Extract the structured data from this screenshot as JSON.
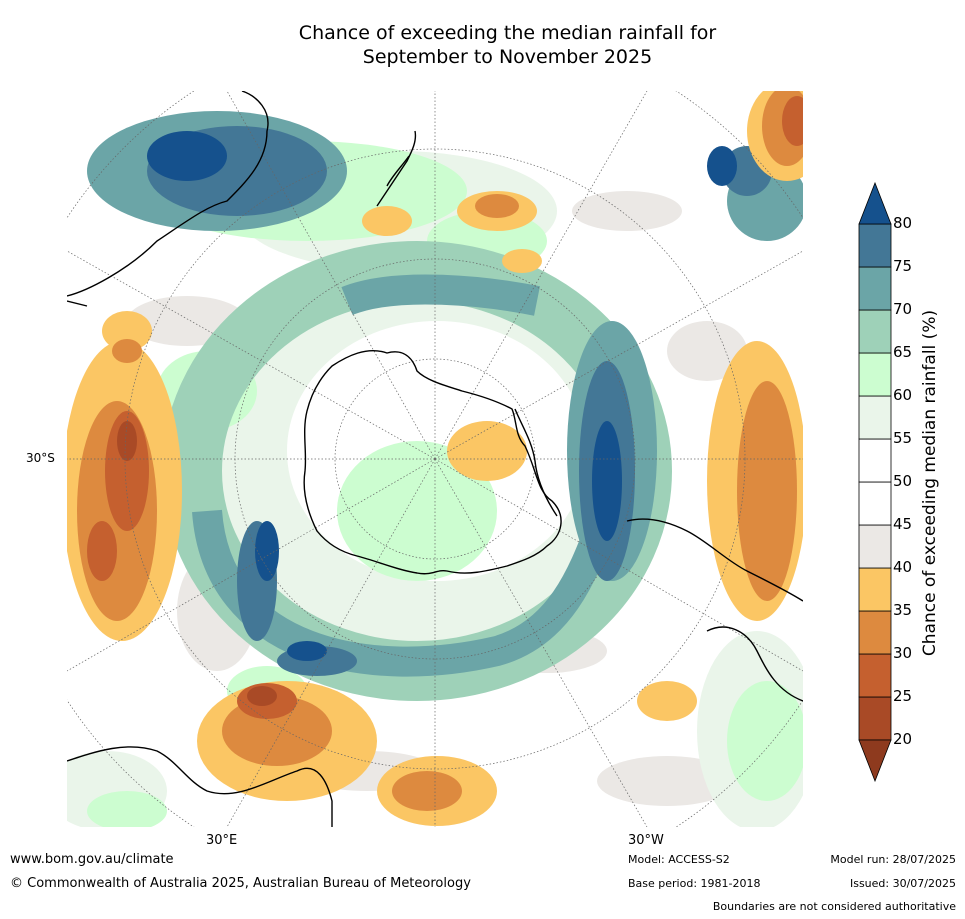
{
  "title_line1": "Chance of exceeding the median rainfall for",
  "title_line2": "September to November 2025",
  "map": {
    "projection": "south polar stereographic",
    "lat_label": "30°S",
    "lon_label_east": "30°E",
    "lon_label_west": "30°W"
  },
  "colorbar": {
    "title": "Chance of exceeding median rainfall (%)",
    "ticks": [
      "20",
      "25",
      "30",
      "35",
      "40",
      "45",
      "50",
      "55",
      "60",
      "65",
      "70",
      "75",
      "80"
    ],
    "colors": {
      "below_20": "#8e3a1e",
      "20-25": "#a94a26",
      "25-30": "#c5602f",
      "30-35": "#dd8a3f",
      "35-40": "#fbc664",
      "40-45": "#ebe8e5",
      "45-50": "#ffffff",
      "50-55": "#ffffff",
      "55-60": "#eaf5ea",
      "60-65": "#ccfdd0",
      "65-70": "#9ed1b8",
      "70-75": "#6ba5a7",
      "75-80": "#437796",
      "above_80": "#15518d"
    }
  },
  "footer": {
    "url": "www.bom.gov.au/climate",
    "copyright": "© Commonwealth of Australia 2025, Australian Bureau of Meteorology",
    "model": "Model: ACCESS-S2",
    "base_period": "Base period: 1981-2018",
    "model_run": "Model run: 28/07/2025",
    "issued": "Issued: 30/07/2025",
    "disclaimer": "Boundaries are not considered authoritative"
  }
}
